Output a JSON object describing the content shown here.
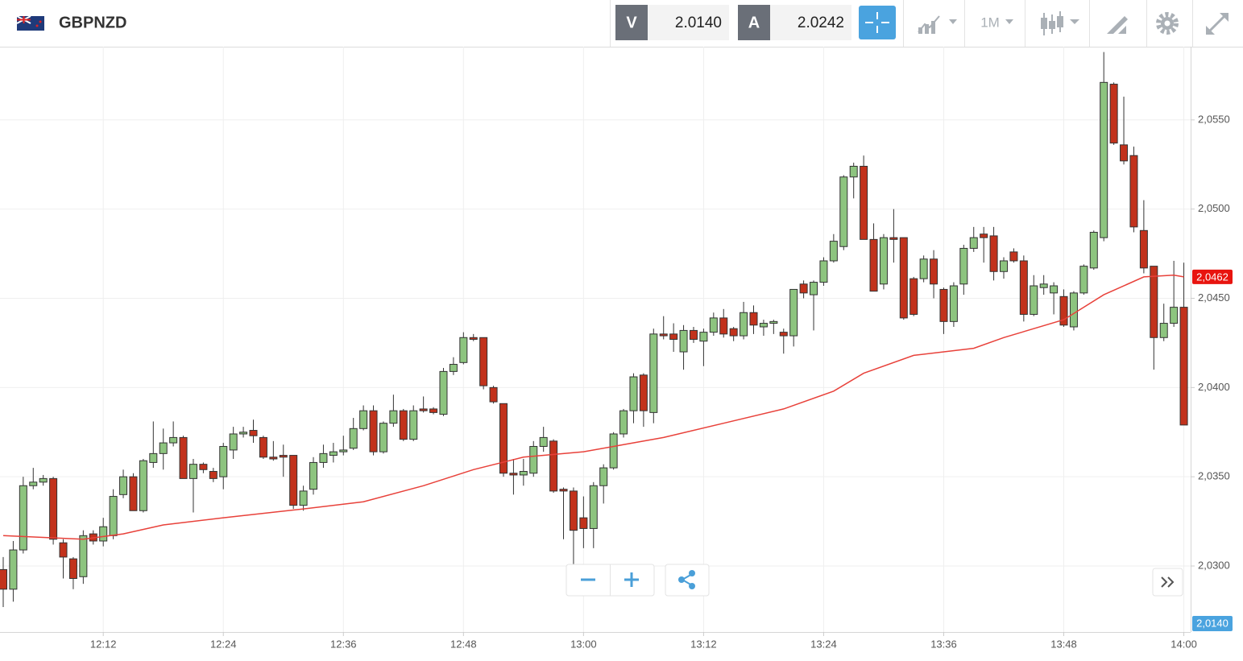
{
  "header": {
    "symbol": "GBPNZD",
    "sell_label": "V",
    "sell_price": "2.0140",
    "buy_label": "A",
    "buy_price": "2.0242",
    "timeframe": "1M"
  },
  "chart_data": {
    "type": "candlestick",
    "x": [
      "12:02",
      "12:03",
      "12:04",
      "12:05",
      "12:06",
      "12:07",
      "12:08",
      "12:09",
      "12:10",
      "12:11",
      "12:12",
      "12:13",
      "12:14",
      "12:15",
      "12:16",
      "12:17",
      "12:18",
      "12:19",
      "12:20",
      "12:21",
      "12:22",
      "12:23",
      "12:24",
      "12:25",
      "12:26",
      "12:27",
      "12:28",
      "12:29",
      "12:30",
      "12:31",
      "12:32",
      "12:33",
      "12:34",
      "12:35",
      "12:36",
      "12:37",
      "12:38",
      "12:39",
      "12:40",
      "12:41",
      "12:42",
      "12:43",
      "12:44",
      "12:45",
      "12:46",
      "12:47",
      "12:48",
      "12:49",
      "12:50",
      "12:51",
      "12:52",
      "12:53",
      "12:54",
      "12:55",
      "12:56",
      "12:57",
      "12:58",
      "12:59",
      "13:00",
      "13:01",
      "13:02",
      "13:03",
      "13:04",
      "13:05",
      "13:06",
      "13:07",
      "13:08",
      "13:09",
      "13:10",
      "13:11",
      "13:12",
      "13:13",
      "13:14",
      "13:15",
      "13:16",
      "13:17",
      "13:18",
      "13:19",
      "13:20",
      "13:21",
      "13:22",
      "13:23",
      "13:24",
      "13:25",
      "13:26",
      "13:27",
      "13:28",
      "13:29",
      "13:30",
      "13:31",
      "13:32",
      "13:33",
      "13:34",
      "13:35",
      "13:36",
      "13:37",
      "13:38",
      "13:39",
      "13:40",
      "13:41",
      "13:42",
      "13:43",
      "13:44",
      "13:45",
      "13:46",
      "13:47",
      "13:48",
      "13:49",
      "13:50",
      "13:51",
      "13:52",
      "13:53",
      "13:54",
      "13:55",
      "13:56",
      "13:57",
      "13:58",
      "13:59",
      "14:00"
    ],
    "open": [
      2.0298,
      2.0287,
      2.0309,
      2.0345,
      2.0347,
      2.0349,
      2.0313,
      2.0304,
      2.0294,
      2.0318,
      2.0314,
      2.0317,
      2.034,
      2.035,
      2.0331,
      2.0358,
      2.0363,
      2.0369,
      2.0372,
      2.0349,
      2.0357,
      2.0353,
      2.035,
      2.0365,
      2.0374,
      2.0376,
      2.0372,
      2.0361,
      2.0362,
      2.0362,
      2.0334,
      2.0343,
      2.0358,
      2.0362,
      2.0364,
      2.0366,
      2.0377,
      2.0387,
      2.0364,
      2.038,
      2.0387,
      2.0371,
      2.0388,
      2.0388,
      2.0385,
      2.0409,
      2.0414,
      2.0428,
      2.0428,
      2.04,
      2.0391,
      2.0352,
      2.0351,
      2.0352,
      2.0367,
      2.037,
      2.0343,
      2.0342,
      2.0327,
      2.0321,
      2.0345,
      2.0355,
      2.0374,
      2.0387,
      2.0407,
      2.0386,
      2.043,
      2.043,
      2.042,
      2.0432,
      2.0426,
      2.0431,
      2.0439,
      2.0433,
      2.0429,
      2.0442,
      2.0434,
      2.0436,
      2.0431,
      2.0429,
      2.0458,
      2.0452,
      2.0459,
      2.0471,
      2.0479,
      2.0518,
      2.0524,
      2.0483,
      2.0458,
      2.0484,
      2.0484,
      2.0461,
      2.0461,
      2.0472,
      2.0455,
      2.0437,
      2.0458,
      2.0478,
      2.0486,
      2.0485,
      2.0465,
      2.0476,
      2.0471,
      2.0441,
      2.0456,
      2.0453,
      2.0451,
      2.0434,
      2.0453,
      2.0467,
      2.0484,
      2.057,
      2.0536,
      2.053,
      2.0488,
      2.0468,
      2.0428,
      2.0436,
      2.0445
    ],
    "high": [
      2.0305,
      2.0314,
      2.035,
      2.0355,
      2.0351,
      2.035,
      2.0315,
      2.0305,
      2.032,
      2.032,
      2.0327,
      2.0343,
      2.0354,
      2.0352,
      2.036,
      2.0381,
      2.0377,
      2.0381,
      2.0373,
      2.036,
      2.0358,
      2.0355,
      2.0369,
      2.0378,
      2.0378,
      2.0382,
      2.0373,
      2.037,
      2.0368,
      2.0362,
      2.0345,
      2.0361,
      2.0368,
      2.0369,
      2.0373,
      2.0383,
      2.039,
      2.039,
      2.0381,
      2.0396,
      2.0388,
      2.039,
      2.0395,
      2.0389,
      2.0411,
      2.0417,
      2.0431,
      2.043,
      2.0428,
      2.0401,
      2.0391,
      2.036,
      2.036,
      2.037,
      2.0378,
      2.0371,
      2.0344,
      2.0344,
      2.0339,
      2.0347,
      2.0357,
      2.0375,
      2.0388,
      2.0408,
      2.0408,
      2.0433,
      2.044,
      2.0436,
      2.0435,
      2.0434,
      2.0433,
      2.0442,
      2.0444,
      2.0434,
      2.0448,
      2.0446,
      2.0438,
      2.0438,
      2.0433,
      2.0455,
      2.046,
      2.046,
      2.0473,
      2.0486,
      2.0519,
      2.0526,
      2.053,
      2.0492,
      2.0486,
      2.05,
      2.0484,
      2.0462,
      2.0474,
      2.0477,
      2.0456,
      2.0459,
      2.048,
      2.049,
      2.049,
      2.049,
      2.0473,
      2.0478,
      2.0474,
      2.0463,
      2.0463,
      2.0459,
      2.0455,
      2.0454,
      2.0469,
      2.0488,
      2.0588,
      2.0571,
      2.0563,
      2.0535,
      2.0505,
      2.0468,
      2.0447,
      2.0471,
      2.047
    ],
    "low": [
      2.0277,
      2.028,
      2.0307,
      2.0343,
      2.0345,
      2.0312,
      2.0293,
      2.0287,
      2.029,
      2.0312,
      2.0311,
      2.0315,
      2.0338,
      2.0331,
      2.033,
      2.0355,
      2.0354,
      2.0367,
      2.0349,
      2.033,
      2.0352,
      2.0347,
      2.0343,
      2.036,
      2.0372,
      2.0369,
      2.036,
      2.0359,
      2.035,
      2.0332,
      2.0331,
      2.034,
      2.0355,
      2.0358,
      2.0362,
      2.0365,
      2.0376,
      2.0362,
      2.0363,
      2.0378,
      2.037,
      2.037,
      2.0386,
      2.0385,
      2.0384,
      2.0407,
      2.0413,
      2.0426,
      2.0399,
      2.0391,
      2.035,
      2.034,
      2.0345,
      2.035,
      2.0364,
      2.0341,
      2.0315,
      2.03,
      2.031,
      2.031,
      2.0335,
      2.0354,
      2.0372,
      2.038,
      2.0378,
      2.038,
      2.0427,
      2.042,
      2.041,
      2.0425,
      2.0412,
      2.0429,
      2.0428,
      2.0426,
      2.0427,
      2.043,
      2.0429,
      2.043,
      2.0419,
      2.0423,
      2.045,
      2.0432,
      2.0457,
      2.047,
      2.0477,
      2.0506,
      2.0483,
      2.0454,
      2.0455,
      2.047,
      2.0438,
      2.044,
      2.0459,
      2.045,
      2.043,
      2.0434,
      2.0452,
      2.0476,
      2.047,
      2.046,
      2.0461,
      2.047,
      2.0437,
      2.044,
      2.0452,
      2.0441,
      2.0434,
      2.0432,
      2.0452,
      2.0466,
      2.0482,
      2.0536,
      2.0525,
      2.0487,
      2.0464,
      2.041,
      2.0426,
      2.0434,
      2.0379
    ],
    "close": [
      2.0287,
      2.0309,
      2.0345,
      2.0347,
      2.0349,
      2.0315,
      2.0305,
      2.0293,
      2.0317,
      2.0314,
      2.0322,
      2.0339,
      2.035,
      2.0331,
      2.0359,
      2.0363,
      2.0369,
      2.0372,
      2.0349,
      2.0357,
      2.0354,
      2.0349,
      2.0367,
      2.0374,
      2.0375,
      2.0373,
      2.0361,
      2.036,
      2.0361,
      2.0334,
      2.0342,
      2.0358,
      2.0363,
      2.0364,
      2.0365,
      2.0377,
      2.0387,
      2.0364,
      2.038,
      2.0387,
      2.0371,
      2.0387,
      2.0387,
      2.0386,
      2.0409,
      2.0413,
      2.0428,
      2.0427,
      2.0401,
      2.0392,
      2.0352,
      2.0351,
      2.0353,
      2.0367,
      2.0372,
      2.0342,
      2.0342,
      2.032,
      2.0321,
      2.0345,
      2.0355,
      2.0374,
      2.0387,
      2.0406,
      2.0387,
      2.043,
      2.0429,
      2.0427,
      2.0432,
      2.0427,
      2.0431,
      2.0439,
      2.043,
      2.0429,
      2.0442,
      2.0435,
      2.0436,
      2.0437,
      2.0429,
      2.0455,
      2.0453,
      2.0459,
      2.0471,
      2.0482,
      2.0518,
      2.0524,
      2.0483,
      2.0454,
      2.0484,
      2.0483,
      2.0439,
      2.0441,
      2.0472,
      2.0458,
      2.0437,
      2.0457,
      2.0478,
      2.0484,
      2.0484,
      2.0465,
      2.0471,
      2.0471,
      2.0441,
      2.0457,
      2.0458,
      2.0457,
      2.0435,
      2.0453,
      2.0468,
      2.0487,
      2.0571,
      2.0537,
      2.0527,
      2.049,
      2.0467,
      2.0428,
      2.0436,
      2.0445,
      2.0379
    ],
    "up_color": "#8dc47f",
    "down_color": "#c2321c",
    "moving_average": {
      "color": "#e8413a",
      "x": [
        "12:02",
        "12:10",
        "12:14",
        "12:18",
        "12:24",
        "12:32",
        "12:38",
        "12:44",
        "12:49",
        "12:54",
        "13:00",
        "13:04",
        "13:08",
        "13:14",
        "13:20",
        "13:25",
        "13:28",
        "13:33",
        "13:39",
        "13:42",
        "13:48",
        "13:52",
        "13:56",
        "13:59",
        "14:00"
      ],
      "values": [
        2.0317,
        2.0315,
        2.0318,
        2.0323,
        2.0327,
        2.0332,
        2.0336,
        2.0345,
        2.0354,
        2.0361,
        2.0364,
        2.0368,
        2.0372,
        2.038,
        2.0388,
        2.0398,
        2.0408,
        2.0418,
        2.0422,
        2.0428,
        2.0438,
        2.0452,
        2.0462,
        2.0463,
        2.0462
      ]
    },
    "ylim": [
      2.0263,
      2.0591
    ],
    "yticks": [
      {
        "value": 2.03,
        "label": "2,0300"
      },
      {
        "value": 2.035,
        "label": "2,0350"
      },
      {
        "value": 2.04,
        "label": "2,0400"
      },
      {
        "value": 2.045,
        "label": "2,0450"
      },
      {
        "value": 2.05,
        "label": "2,0500"
      },
      {
        "value": 2.055,
        "label": "2,0550"
      }
    ],
    "xticks": [
      "12:12",
      "12:24",
      "12:36",
      "12:48",
      "13:00",
      "13:12",
      "13:24",
      "13:36",
      "13:48",
      "14:00"
    ],
    "grid": true,
    "last_price": {
      "value": 2.0462,
      "label": "2,0462",
      "color": "#e8140f"
    },
    "bid_tag": {
      "label": "2,0140",
      "color": "#4aa3df"
    }
  }
}
